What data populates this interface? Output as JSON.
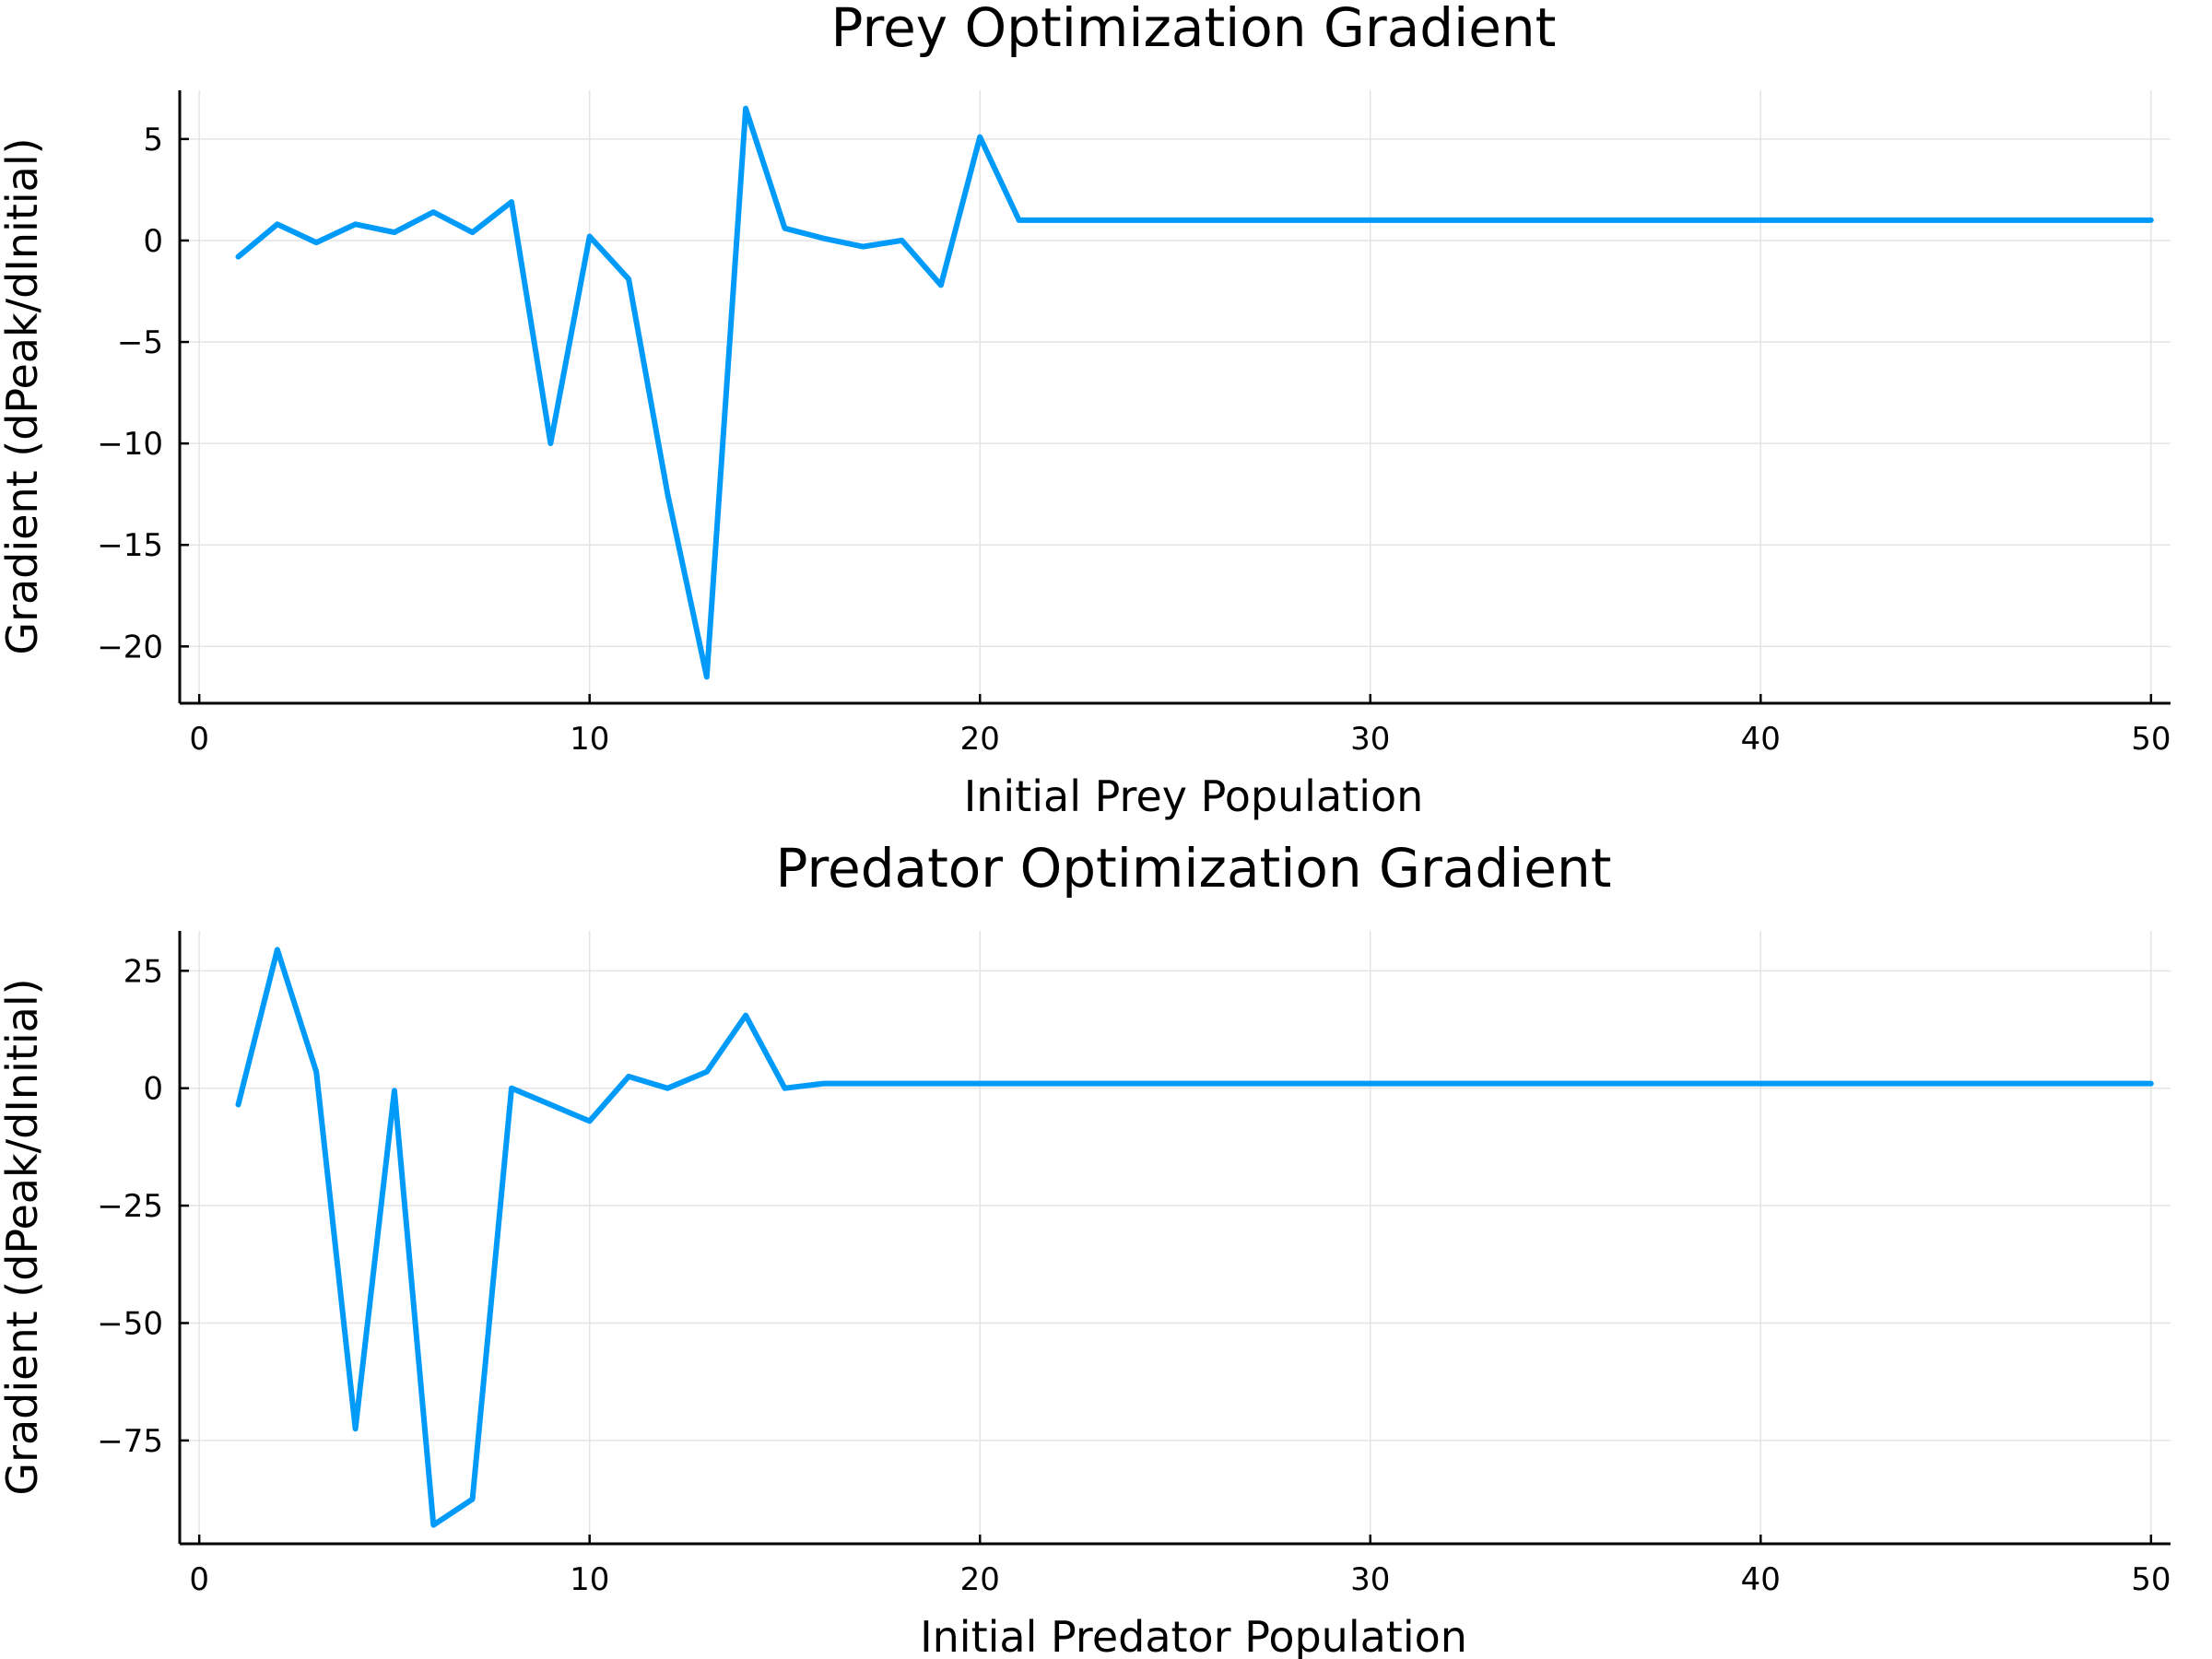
{
  "colors": {
    "series": "#009af9",
    "grid": "#e4e4e4",
    "axis": "#000000"
  },
  "chart_data": [
    {
      "type": "line",
      "title": "Prey Optimization Gradient",
      "xlabel": "Initial Prey Population",
      "ylabel": "Gradient (dPeak/dInitial)",
      "xlim": [
        -0.5,
        50.5
      ],
      "ylim": [
        -22.8,
        7.4
      ],
      "xticks": [
        0,
        10,
        20,
        30,
        40,
        50
      ],
      "xtick_labels": [
        "0",
        "10",
        "20",
        "30",
        "40",
        "50"
      ],
      "yticks": [
        -20,
        -15,
        -10,
        -5,
        0,
        5
      ],
      "ytick_labels": [
        "−20",
        "−15",
        "−10",
        "−5",
        "0",
        "5"
      ],
      "grid": true,
      "legend": "none",
      "series": [
        {
          "x": [
            1,
            2,
            3,
            4,
            5,
            6,
            7,
            8,
            9,
            10,
            11,
            12,
            13,
            14,
            15,
            16,
            17,
            18,
            19,
            20,
            21,
            22,
            23,
            24,
            25,
            26,
            27,
            28,
            29,
            30,
            31,
            32,
            33,
            34,
            35,
            36,
            37,
            38,
            39,
            40,
            41,
            42,
            43,
            44,
            45,
            46,
            47,
            48,
            49,
            50
          ],
          "y": [
            -0.8,
            0.8,
            -0.1,
            0.8,
            0.4,
            1.4,
            0.4,
            1.9,
            -10.0,
            0.2,
            -1.9,
            -12.5,
            -21.5,
            6.5,
            0.6,
            0.1,
            -0.3,
            0.0,
            -2.2,
            5.1,
            1.0,
            1.0,
            1.0,
            1.0,
            1.0,
            1.0,
            1.0,
            1.0,
            1.0,
            1.0,
            1.0,
            1.0,
            1.0,
            1.0,
            1.0,
            1.0,
            1.0,
            1.0,
            1.0,
            1.0,
            1.0,
            1.0,
            1.0,
            1.0,
            1.0,
            1.0,
            1.0,
            1.0,
            1.0,
            1.0
          ]
        }
      ]
    },
    {
      "type": "line",
      "title": "Predator Optimization Gradient",
      "xlabel": "Initial Predator Population",
      "ylabel": "Gradient (dPeak/dInitial)",
      "xlim": [
        -0.5,
        50.5
      ],
      "ylim": [
        -97,
        33.5
      ],
      "xticks": [
        0,
        10,
        20,
        30,
        40,
        50
      ],
      "xtick_labels": [
        "0",
        "10",
        "20",
        "30",
        "40",
        "50"
      ],
      "yticks": [
        -75,
        -50,
        -25,
        0,
        25
      ],
      "ytick_labels": [
        "−75",
        "−50",
        "−25",
        "0",
        "25"
      ],
      "grid": true,
      "legend": "none",
      "series": [
        {
          "x": [
            1,
            2,
            3,
            4,
            5,
            6,
            7,
            8,
            9,
            10,
            11,
            12,
            13,
            14,
            15,
            16,
            17,
            18,
            19,
            20,
            21,
            22,
            23,
            24,
            25,
            26,
            27,
            28,
            29,
            30,
            31,
            32,
            33,
            34,
            35,
            36,
            37,
            38,
            39,
            40,
            41,
            42,
            43,
            44,
            45,
            46,
            47,
            48,
            49,
            50
          ],
          "y": [
            -3.5,
            29.5,
            3.5,
            -72.5,
            -0.5,
            -93.0,
            -87.5,
            0.0,
            -3.5,
            -7.0,
            2.5,
            0.0,
            3.5,
            15.5,
            0.0,
            1.0,
            1.0,
            1.0,
            1.0,
            1.0,
            1.0,
            1.0,
            1.0,
            1.0,
            1.0,
            1.0,
            1.0,
            1.0,
            1.0,
            1.0,
            1.0,
            1.0,
            1.0,
            1.0,
            1.0,
            1.0,
            1.0,
            1.0,
            1.0,
            1.0,
            1.0,
            1.0,
            1.0,
            1.0,
            1.0,
            1.0,
            1.0,
            1.0,
            1.0,
            1.0
          ]
        }
      ]
    }
  ]
}
